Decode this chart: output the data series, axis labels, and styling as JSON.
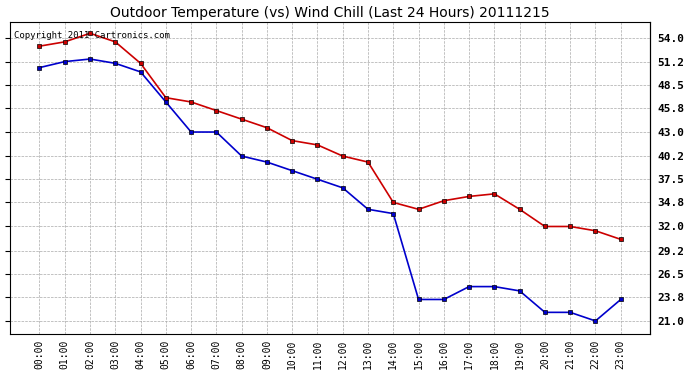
{
  "title": "Outdoor Temperature (vs) Wind Chill (Last 24 Hours) 20111215",
  "copyright_text": "Copyright 2011 Cartronics.com",
  "x_labels": [
    "00:00",
    "01:00",
    "02:00",
    "03:00",
    "04:00",
    "05:00",
    "06:00",
    "07:00",
    "08:00",
    "09:00",
    "10:00",
    "11:00",
    "12:00",
    "13:00",
    "14:00",
    "15:00",
    "16:00",
    "17:00",
    "18:00",
    "19:00",
    "20:00",
    "21:00",
    "22:00",
    "23:00"
  ],
  "temp_red": [
    53.0,
    53.5,
    54.5,
    53.5,
    51.0,
    47.0,
    46.5,
    45.5,
    44.5,
    43.5,
    42.0,
    41.5,
    40.2,
    39.5,
    34.8,
    34.0,
    35.0,
    35.5,
    35.8,
    34.0,
    32.0,
    32.0,
    31.5,
    30.5
  ],
  "wind_chill_blue": [
    50.5,
    51.2,
    51.5,
    51.0,
    50.0,
    46.5,
    43.0,
    43.0,
    40.2,
    39.5,
    38.5,
    37.5,
    36.5,
    34.0,
    33.5,
    23.5,
    23.5,
    25.0,
    25.0,
    24.5,
    22.0,
    22.0,
    21.0,
    23.5
  ],
  "ylim": [
    19.5,
    55.8
  ],
  "yticks": [
    21.0,
    23.8,
    26.5,
    29.2,
    32.0,
    34.8,
    37.5,
    40.2,
    43.0,
    45.8,
    48.5,
    51.2,
    54.0
  ],
  "ytick_labels": [
    "21.0",
    "23.8",
    "26.5",
    "29.2",
    "32.0",
    "34.8",
    "37.5",
    "40.2",
    "43.0",
    "45.8",
    "48.5",
    "51.2",
    "54.0"
  ],
  "red_color": "#cc0000",
  "blue_color": "#0000cc",
  "bg_color": "#ffffff",
  "grid_color": "#aaaaaa",
  "title_fontsize": 10,
  "copyright_fontsize": 6.5,
  "tick_fontsize": 7,
  "ytick_fontsize": 8
}
